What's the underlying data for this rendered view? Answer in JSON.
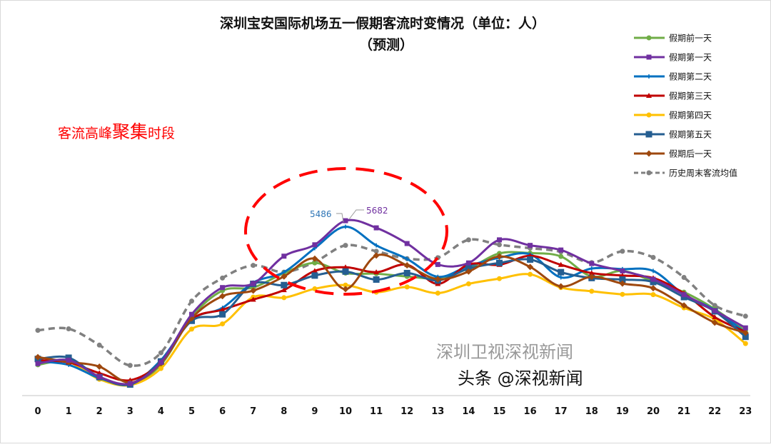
{
  "chart_data": {
    "type": "line",
    "title": "深圳宝安国际机场五一假期客流时变情况（单位：人）",
    "subtitle": "（预测）",
    "xlabel": "",
    "ylabel": "",
    "grid": false,
    "legend_position": "top-right",
    "categories": [
      "0",
      "1",
      "2",
      "3",
      "4",
      "5",
      "6",
      "7",
      "8",
      "9",
      "10",
      "11",
      "12",
      "13",
      "14",
      "15",
      "16",
      "17",
      "18",
      "19",
      "20",
      "21",
      "22",
      "23"
    ],
    "series": [
      {
        "name": "假期前一天",
        "color": "#70AD47",
        "marker": "circle",
        "dashed": false,
        "values": [
          1000,
          1110,
          570,
          380,
          1000,
          2550,
          3410,
          3510,
          3980,
          4310,
          3980,
          3960,
          3870,
          3820,
          4130,
          4620,
          4630,
          4520,
          3870,
          4050,
          3710,
          3360,
          2810,
          2100
        ]
      },
      {
        "name": "假期第一天",
        "color": "#7030A0",
        "marker": "square",
        "dashed": false,
        "values": [
          1040,
          1150,
          610,
          390,
          1080,
          2640,
          3510,
          3640,
          4530,
          4900,
          5682,
          5450,
          4940,
          4260,
          4310,
          5060,
          4880,
          4730,
          4290,
          4050,
          3780,
          3280,
          2760,
          2200
        ]
      },
      {
        "name": "假期第二天",
        "color": "#0070C0",
        "marker": "plus",
        "dashed": false,
        "values": [
          1110,
          1000,
          570,
          380,
          1150,
          2470,
          2850,
          3670,
          4010,
          4790,
          5486,
          4880,
          4440,
          3860,
          4210,
          4480,
          4590,
          3840,
          4130,
          4110,
          4050,
          3280,
          2780,
          2040
        ]
      },
      {
        "name": "假期第三天",
        "color": "#C00000",
        "marker": "triangle",
        "dashed": false,
        "values": [
          1150,
          1080,
          730,
          500,
          1080,
          2470,
          2790,
          3120,
          3430,
          4050,
          4170,
          4010,
          4250,
          3630,
          4260,
          4250,
          4540,
          4250,
          3980,
          3900,
          3820,
          3320,
          2550,
          2070
        ]
      },
      {
        "name": "假期第四天",
        "color": "#FFC000",
        "marker": "circle",
        "dashed": false,
        "values": [
          1080,
          1090,
          530,
          340,
          880,
          2160,
          2330,
          3200,
          3180,
          3470,
          3590,
          3360,
          3530,
          3330,
          3630,
          3800,
          3940,
          3510,
          3390,
          3290,
          3280,
          2850,
          2480,
          1690
        ]
      },
      {
        "name": "假期第五天",
        "color": "#255E91",
        "marker": "square-large",
        "dashed": false,
        "values": [
          1190,
          1230,
          600,
          360,
          1110,
          2430,
          2640,
          3630,
          3590,
          3900,
          4030,
          3770,
          3980,
          3740,
          4130,
          4310,
          4420,
          4010,
          3820,
          3770,
          3690,
          3200,
          2740,
          1910
        ]
      },
      {
        "name": "假期后一天",
        "color": "#9E480E",
        "marker": "diamond",
        "dashed": false,
        "values": [
          1250,
          1090,
          940,
          420,
          1050,
          2510,
          3230,
          3410,
          3870,
          4450,
          3460,
          4550,
          4230,
          3780,
          4030,
          4520,
          4180,
          3550,
          3860,
          3640,
          3490,
          2930,
          2370,
          2040
        ]
      },
      {
        "name": "历史周末客流均值",
        "color": "#808080",
        "marker": "circle",
        "dashed": true,
        "values": [
          2120,
          2170,
          1640,
          980,
          1390,
          3070,
          3820,
          4230,
          4010,
          4340,
          4880,
          4690,
          4450,
          4480,
          5060,
          4900,
          4790,
          4670,
          4320,
          4690,
          4490,
          3840,
          2930,
          2580
        ]
      }
    ],
    "data_labels": [
      {
        "series": "假期第二天",
        "x": "10",
        "text": "5486",
        "color": "#2E75B6"
      },
      {
        "series": "假期第一天",
        "x": "10",
        "text": "5682",
        "color": "#7030A0"
      }
    ],
    "annotation": {
      "text_a": "客流高峰",
      "text_b": "聚集",
      "text_c": "时段",
      "color": "#FF0000",
      "ellipse_color": "#FF0000"
    }
  },
  "watermark": {
    "line1": "深圳卫视深视新闻",
    "line2": "头条 @深视新闻"
  }
}
